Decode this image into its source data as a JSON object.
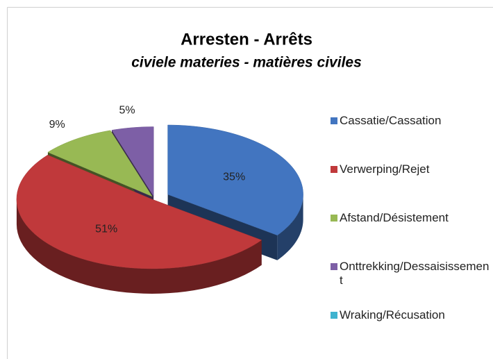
{
  "chart_data": {
    "type": "pie3d",
    "title": "Arresten - Arrêts",
    "subtitle": "civiele materies - matières civiles",
    "categories": [
      "Cassatie/Cassation",
      "Verwerping/Rejet",
      "Afstand/Désistement",
      "Onttrekking/Dessaisissement",
      "Wraking/Récusation"
    ],
    "values": [
      35,
      51,
      9,
      5,
      0
    ],
    "value_labels": [
      "35%",
      "51%",
      "9%",
      "5%",
      null
    ],
    "colors": [
      "#4275c0",
      "#c0393b",
      "#98b954",
      "#7d5fa6",
      "#3fb3cf"
    ],
    "legend": "right"
  }
}
